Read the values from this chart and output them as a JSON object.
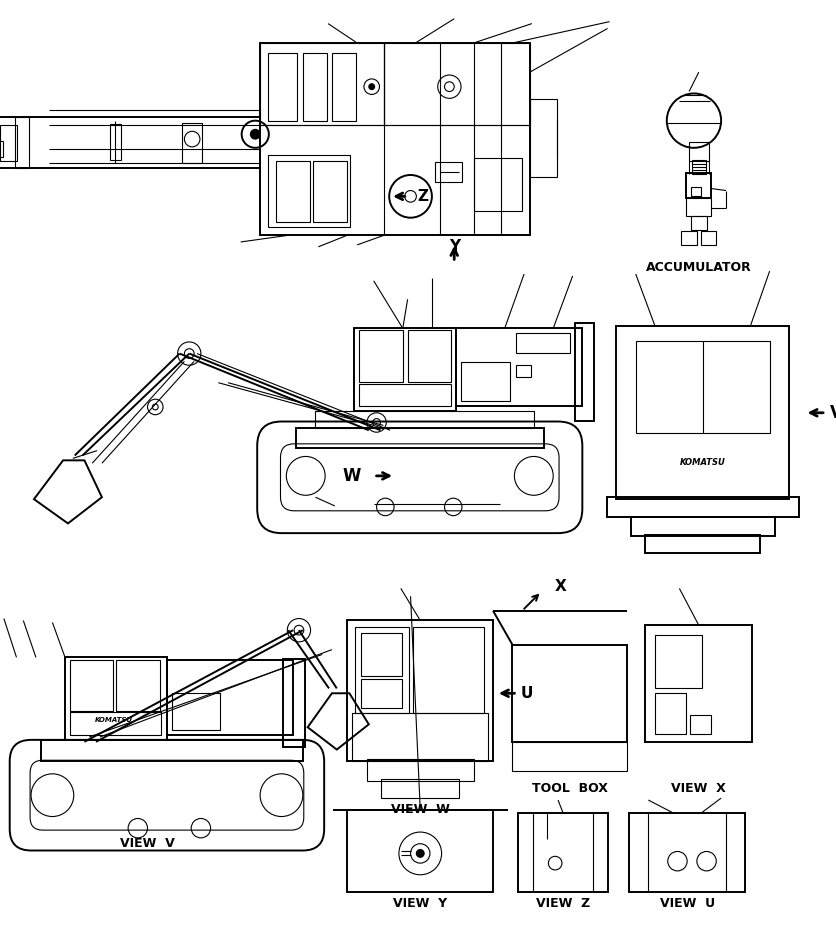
{
  "bg_color": "#ffffff",
  "lc": "#000000",
  "lw": 0.8,
  "lw2": 1.4,
  "lw3": 2.0,
  "labels": {
    "accumulator": "ACCUMULATOR",
    "view_v": "VIEW  V",
    "view_w": "VIEW  W",
    "view_x": "VIEW  X",
    "view_y": "VIEW  Y",
    "view_z": "VIEW  Z",
    "view_u": "VIEW  U",
    "tool_box": "TOOL  BOX"
  }
}
